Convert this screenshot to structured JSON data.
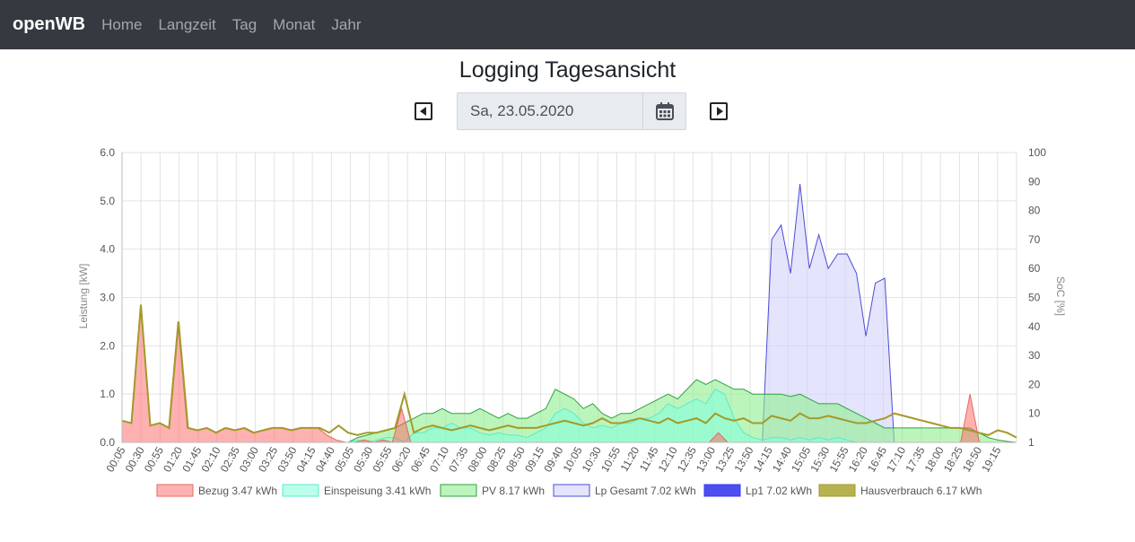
{
  "nav": {
    "brand": "openWB",
    "links": [
      "Home",
      "Langzeit",
      "Tag",
      "Monat",
      "Jahr"
    ]
  },
  "page": {
    "title": "Logging Tagesansicht",
    "date": "Sa, 23.05.2020"
  },
  "icons": {
    "prev": "caret-left-square-icon",
    "next": "caret-right-square-icon",
    "calendar": "calendar-icon"
  },
  "chart_data": {
    "type": "area",
    "ylabel_left": "Leistung [kW]",
    "ylabel_right": "SoC [%]",
    "ylim_left": [
      0,
      6
    ],
    "left_ticks": [
      "0.0",
      "1.0",
      "2.0",
      "3.0",
      "4.0",
      "5.0",
      "6.0"
    ],
    "right_ticks": [
      "1",
      "10",
      "20",
      "30",
      "40",
      "50",
      "60",
      "70",
      "80",
      "90",
      "100"
    ],
    "x_ticks": [
      "00:05",
      "00:30",
      "00:55",
      "01:20",
      "01:45",
      "02:10",
      "02:35",
      "03:00",
      "03:25",
      "03:50",
      "04:15",
      "04:40",
      "05:05",
      "05:30",
      "05:55",
      "06:20",
      "06:45",
      "07:10",
      "07:35",
      "08:00",
      "08:25",
      "08:50",
      "09:15",
      "09:40",
      "10:05",
      "10:30",
      "10:55",
      "11:20",
      "11:45",
      "12:10",
      "12:35",
      "13:00",
      "13:25",
      "13:50",
      "14:15",
      "14:40",
      "15:05",
      "15:30",
      "15:55",
      "16:20",
      "16:45",
      "17:10",
      "17:35",
      "18:00",
      "18:25",
      "18:50",
      "19:15"
    ],
    "grid": true,
    "legend_position": "bottom",
    "series": [
      {
        "name": "Bezug 3.47 kWh",
        "stroke": "#e06a5e",
        "fill": "rgba(255,99,99,0.5)",
        "values": [
          0.45,
          0.4,
          2.85,
          0.35,
          0.4,
          0.3,
          2.5,
          0.3,
          0.25,
          0.3,
          0.2,
          0.3,
          0.25,
          0.3,
          0.2,
          0.25,
          0.3,
          0.3,
          0.25,
          0.3,
          0.3,
          0.3,
          0.15,
          0.05,
          0,
          0,
          0.05,
          0,
          0.05,
          0,
          0.7,
          0,
          0,
          0,
          0,
          0,
          0,
          0,
          0,
          0,
          0,
          0,
          0,
          0,
          0,
          0,
          0,
          0,
          0,
          0,
          0,
          0,
          0,
          0,
          0,
          0,
          0,
          0,
          0,
          0,
          0,
          0,
          0,
          0,
          0.2,
          0,
          0,
          0,
          0,
          0,
          0,
          0,
          0,
          0,
          0,
          0,
          0,
          0,
          0,
          0,
          0,
          0,
          0,
          0,
          0,
          0,
          0,
          0,
          0,
          0,
          0,
          1.0,
          0,
          0,
          0,
          0,
          0
        ]
      },
      {
        "name": "Einspeisung 3.41 kWh",
        "stroke": "#5fe8c8",
        "fill": "rgba(127,255,220,0.55)",
        "values": [
          0,
          0,
          0,
          0,
          0,
          0,
          0,
          0,
          0,
          0,
          0,
          0,
          0,
          0,
          0,
          0,
          0,
          0,
          0,
          0,
          0,
          0,
          0,
          0,
          0,
          0.05,
          0,
          0.05,
          0.1,
          0.1,
          0,
          0.2,
          0.2,
          0.3,
          0.3,
          0.4,
          0.3,
          0.3,
          0.2,
          0.15,
          0.2,
          0.15,
          0.15,
          0.1,
          0.2,
          0.3,
          0.6,
          0.7,
          0.6,
          0.4,
          0.3,
          0.35,
          0.3,
          0.4,
          0.4,
          0.5,
          0.5,
          0.6,
          0.8,
          0.7,
          0.8,
          0.9,
          0.8,
          1.1,
          1.0,
          0.5,
          0.2,
          0.1,
          0.05,
          0.1,
          0.1,
          0.05,
          0.1,
          0.05,
          0.1,
          0.05,
          0.1,
          0.05,
          0,
          0,
          0,
          0,
          0,
          0,
          0,
          0,
          0,
          0,
          0,
          0,
          0,
          0,
          0,
          0,
          0,
          0
        ]
      },
      {
        "name": "PV 8.17 kWh",
        "stroke": "#2ea043",
        "fill": "rgba(144,238,144,0.6)",
        "values": [
          0,
          0,
          0,
          0,
          0,
          0,
          0,
          0,
          0,
          0,
          0,
          0,
          0,
          0,
          0,
          0,
          0,
          0,
          0,
          0,
          0,
          0,
          0,
          0,
          0,
          0.1,
          0.15,
          0.2,
          0.25,
          0.3,
          0.4,
          0.5,
          0.6,
          0.6,
          0.7,
          0.6,
          0.6,
          0.6,
          0.7,
          0.6,
          0.5,
          0.6,
          0.5,
          0.5,
          0.6,
          0.7,
          1.1,
          1.0,
          0.9,
          0.7,
          0.8,
          0.6,
          0.5,
          0.6,
          0.6,
          0.7,
          0.8,
          0.9,
          1.0,
          0.9,
          1.1,
          1.3,
          1.2,
          1.3,
          1.2,
          1.1,
          1.1,
          1.0,
          1.0,
          1.0,
          1.0,
          0.95,
          1.0,
          0.9,
          0.8,
          0.8,
          0.8,
          0.7,
          0.6,
          0.5,
          0.4,
          0.3,
          0.3,
          0.3,
          0.3,
          0.3,
          0.3,
          0.3,
          0.3,
          0.3,
          0.3,
          0.2,
          0.1,
          0.05,
          0.02,
          0
        ]
      },
      {
        "name": "Lp Gesamt 7.02 kWh",
        "stroke": "#4b4bd6",
        "fill": "rgba(210,210,250,0.6)",
        "values": [
          0,
          0,
          0,
          0,
          0,
          0,
          0,
          0,
          0,
          0,
          0,
          0,
          0,
          0,
          0,
          0,
          0,
          0,
          0,
          0,
          0,
          0,
          0,
          0,
          0,
          0,
          0,
          0,
          0,
          0,
          0,
          0,
          0,
          0,
          0,
          0,
          0,
          0,
          0,
          0,
          0,
          0,
          0,
          0,
          0,
          0,
          0,
          0,
          0,
          0,
          0,
          0,
          0,
          0,
          0,
          0,
          0,
          0,
          0,
          0,
          0,
          0,
          0,
          0,
          0,
          0,
          0,
          0,
          0,
          4.2,
          4.5,
          3.5,
          5.35,
          3.6,
          4.3,
          3.6,
          3.9,
          3.9,
          3.5,
          2.2,
          3.3,
          3.4,
          0,
          0,
          0,
          0,
          0,
          0,
          0,
          0,
          0,
          0,
          0,
          0,
          0,
          0
        ]
      },
      {
        "name": "Lp1 7.02 kWh",
        "stroke": "#3a3af0",
        "fill": "rgba(58,58,240,0.9)",
        "values": []
      },
      {
        "name": "Hausverbrauch 6.17 kWh",
        "stroke": "#a39a2a",
        "fill": "rgba(170,165,50,0.85)",
        "values": [
          0.45,
          0.4,
          2.85,
          0.35,
          0.4,
          0.3,
          2.5,
          0.3,
          0.25,
          0.3,
          0.2,
          0.3,
          0.25,
          0.3,
          0.2,
          0.25,
          0.3,
          0.3,
          0.25,
          0.3,
          0.3,
          0.3,
          0.2,
          0.35,
          0.2,
          0.15,
          0.2,
          0.2,
          0.25,
          0.3,
          1.0,
          0.2,
          0.3,
          0.35,
          0.3,
          0.25,
          0.3,
          0.35,
          0.3,
          0.25,
          0.3,
          0.35,
          0.3,
          0.3,
          0.3,
          0.35,
          0.4,
          0.45,
          0.4,
          0.35,
          0.4,
          0.5,
          0.4,
          0.4,
          0.45,
          0.5,
          0.45,
          0.4,
          0.5,
          0.4,
          0.45,
          0.5,
          0.4,
          0.6,
          0.5,
          0.45,
          0.5,
          0.4,
          0.4,
          0.55,
          0.5,
          0.45,
          0.6,
          0.5,
          0.5,
          0.55,
          0.5,
          0.45,
          0.4,
          0.4,
          0.45,
          0.5,
          0.6,
          0.55,
          0.5,
          0.45,
          0.4,
          0.35,
          0.3,
          0.3,
          0.25,
          0.2,
          0.15,
          0.25,
          0.2,
          0.1
        ]
      }
    ]
  }
}
